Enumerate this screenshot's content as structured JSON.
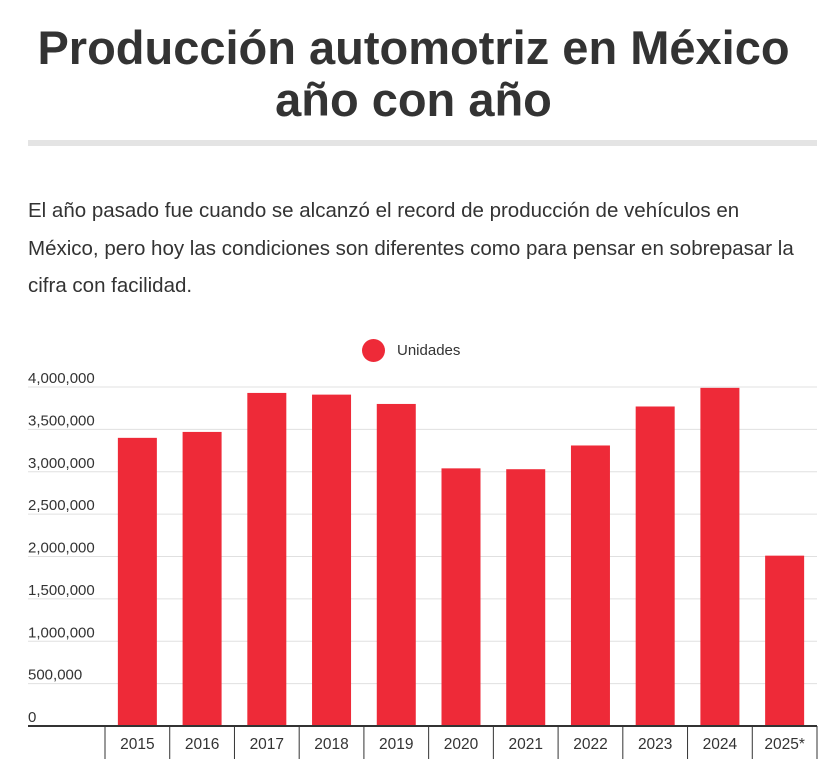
{
  "title": {
    "line1": "Producción automotriz en México",
    "line2": "año con año"
  },
  "description": "El año pasado fue cuando se alcanzó el record de producción de vehículos en México, pero hoy las condiciones son diferentes como para pensar en sobrepasar la cifra con facilidad.",
  "colors": {
    "bar": "#ee2a38",
    "grid": "#e0e0e0",
    "axis": "#333333"
  },
  "chart_data": {
    "type": "bar",
    "title": "Producción automotriz en México año con año",
    "xlabel": "",
    "ylabel": "",
    "legend": [
      "Unidades"
    ],
    "legend_position": "top-center",
    "categories": [
      "2015",
      "2016",
      "2017",
      "2018",
      "2019",
      "2020",
      "2021",
      "2022",
      "2023",
      "2024",
      "2025*"
    ],
    "series": [
      {
        "name": "Unidades",
        "values": [
          3400000,
          3470000,
          3930000,
          3910000,
          3800000,
          3040000,
          3030000,
          3310000,
          3770000,
          3990000,
          2010000
        ]
      }
    ],
    "ylim": [
      0,
      4000000
    ],
    "yticks": [
      0,
      500000,
      1000000,
      1500000,
      2000000,
      2500000,
      3000000,
      3500000,
      4000000
    ],
    "ytick_labels": [
      "0",
      "500,000",
      "1,000,000",
      "1,500,000",
      "2,000,000",
      "2,500,000",
      "3,000,000",
      "3,500,000",
      "4,000,000"
    ],
    "grid": true
  }
}
